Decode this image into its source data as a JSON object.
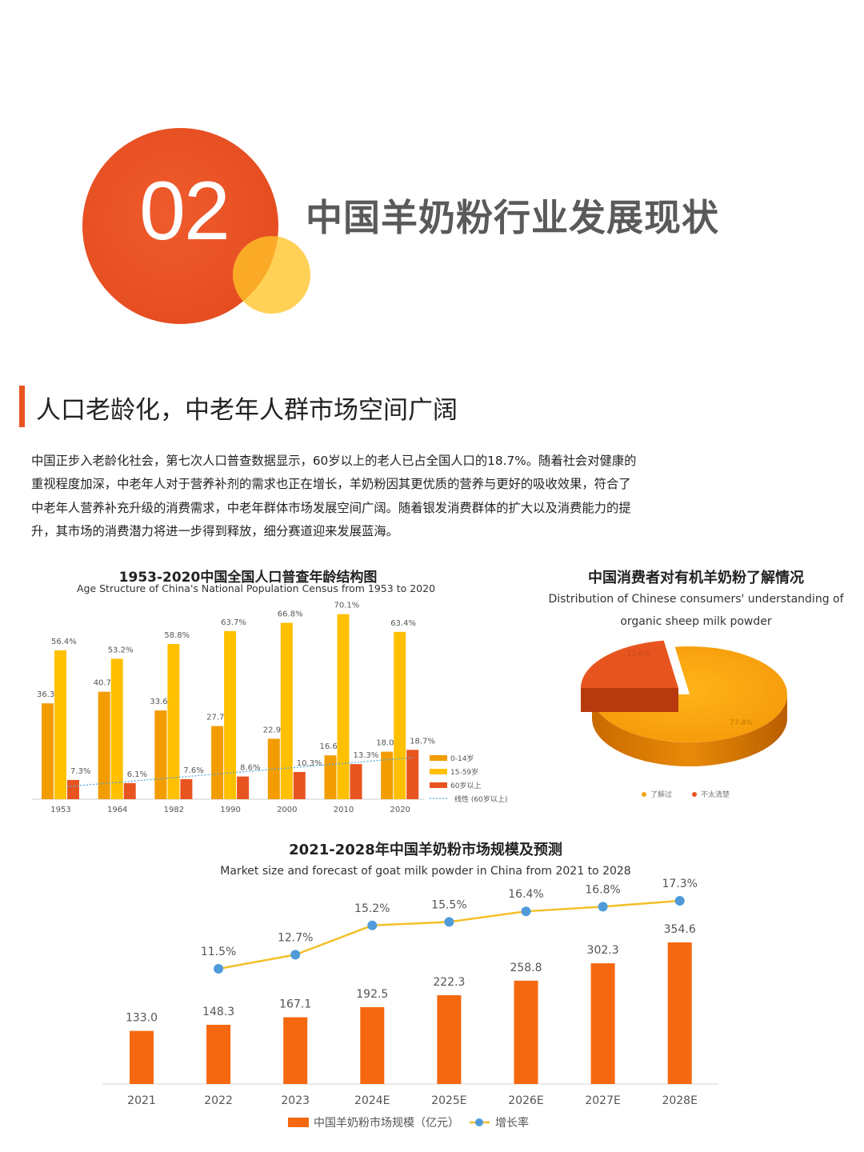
{
  "header": {
    "section_number": "02",
    "section_title": "中国羊奶粉行业发展现状"
  },
  "section": {
    "subheading": "人口老龄化，中老年人群市场空间广阔",
    "body": "中国正步入老龄化社会，第七次人口普查数据显示，60岁以上的老人已占全国人口的18.7%。随着社会对健康的重视程度加深，中老年人对于营养补剂的需求也正在增长，羊奶粉因其更优质的营养与更好的吸收效果，符合了中老年人营养补充升级的消费需求，中老年群体市场发展空间广阔。随着银发消费群体的扩大以及消费能力的提升，其市场的消费潜力将进一步得到释放，细分赛道迎来发展蓝海。"
  },
  "colors": {
    "accent": "#e8541f",
    "secondary": "#f2a600",
    "yellow": "#ffc107",
    "trend": "#5aa9d9"
  },
  "chart_data": [
    {
      "type": "bar",
      "title": "1953-2020中国全国人口普查年龄结构图",
      "subtitle": "Age Structure of China's National Population Census from 1953 to 2020",
      "categories": [
        "1953",
        "1964",
        "1982",
        "1990",
        "2000",
        "2010",
        "2020"
      ],
      "series": [
        {
          "name": "0-14岁",
          "values": [
            36.3,
            40.7,
            33.6,
            27.7,
            22.9,
            16.6,
            18.0
          ],
          "labels": [
            "36.3%",
            "40.7%",
            "33.6%",
            "27.7%",
            "22.9%",
            "16.6%",
            "18.0%"
          ],
          "color": "#f29c00"
        },
        {
          "name": "15-59岁",
          "values": [
            56.4,
            53.2,
            58.8,
            63.7,
            66.8,
            70.1,
            63.4
          ],
          "labels": [
            "56.4%",
            "53.2%",
            "58.8%",
            "63.7%",
            "66.8%",
            "70.1%",
            "63.4%"
          ],
          "color": "#ffc000"
        },
        {
          "name": "60岁以上",
          "values": [
            7.3,
            6.1,
            7.6,
            8.6,
            10.3,
            13.3,
            18.7
          ],
          "labels": [
            "7.3%",
            "6.1%",
            "7.6%",
            "8.6%",
            "10.3%",
            "13.3%",
            "18.7%"
          ],
          "color": "#e8541f"
        }
      ],
      "trendline": {
        "name": "线性 (60岁以上)",
        "color": "#5aa9d9"
      },
      "ylim": [
        0,
        75
      ],
      "legend": "right",
      "grid": false
    },
    {
      "type": "pie",
      "title": "中国消费者对有机羊奶粉了解情况",
      "subtitle_line1": "Distribution of Chinese consumers' understanding of",
      "subtitle_line2": "organic sheep milk powder",
      "slices": [
        {
          "name": "了解过",
          "value": 77.4,
          "label": "77.4%",
          "color": "#f6a411"
        },
        {
          "name": "不太清楚",
          "value": 22.6,
          "label": "22.6%",
          "color": "#e8541f"
        }
      ],
      "legend": "bottom",
      "style": "3d"
    },
    {
      "type": "bar",
      "title": "2021-2028年中国羊奶粉市场规模及预测",
      "subtitle": "Market size and forecast of goat milk powder in China from 2021 to 2028",
      "categories": [
        "2021",
        "2022",
        "2023",
        "2024E",
        "2025E",
        "2026E",
        "2027E",
        "2028E"
      ],
      "series": [
        {
          "name": "中国羊奶粉市场规模（亿元）",
          "type": "bar",
          "values": [
            133.0,
            148.3,
            167.1,
            192.5,
            222.3,
            258.8,
            302.3,
            354.6
          ],
          "labels": [
            "133.0",
            "148.3",
            "167.1",
            "192.5",
            "222.3",
            "258.8",
            "302.3",
            "354.6"
          ],
          "color": "#f5680f"
        },
        {
          "name": "增长率",
          "type": "line",
          "values": [
            null,
            11.5,
            12.7,
            15.2,
            15.5,
            16.4,
            16.8,
            17.3
          ],
          "labels": [
            "",
            "11.5%",
            "12.7%",
            "15.2%",
            "15.5%",
            "16.4%",
            "16.8%",
            "17.3%"
          ],
          "color": "#f2c02a",
          "marker_color": "#4f9bd9"
        }
      ],
      "ylim": [
        0,
        360
      ],
      "legend": "bottom",
      "grid": false
    }
  ]
}
